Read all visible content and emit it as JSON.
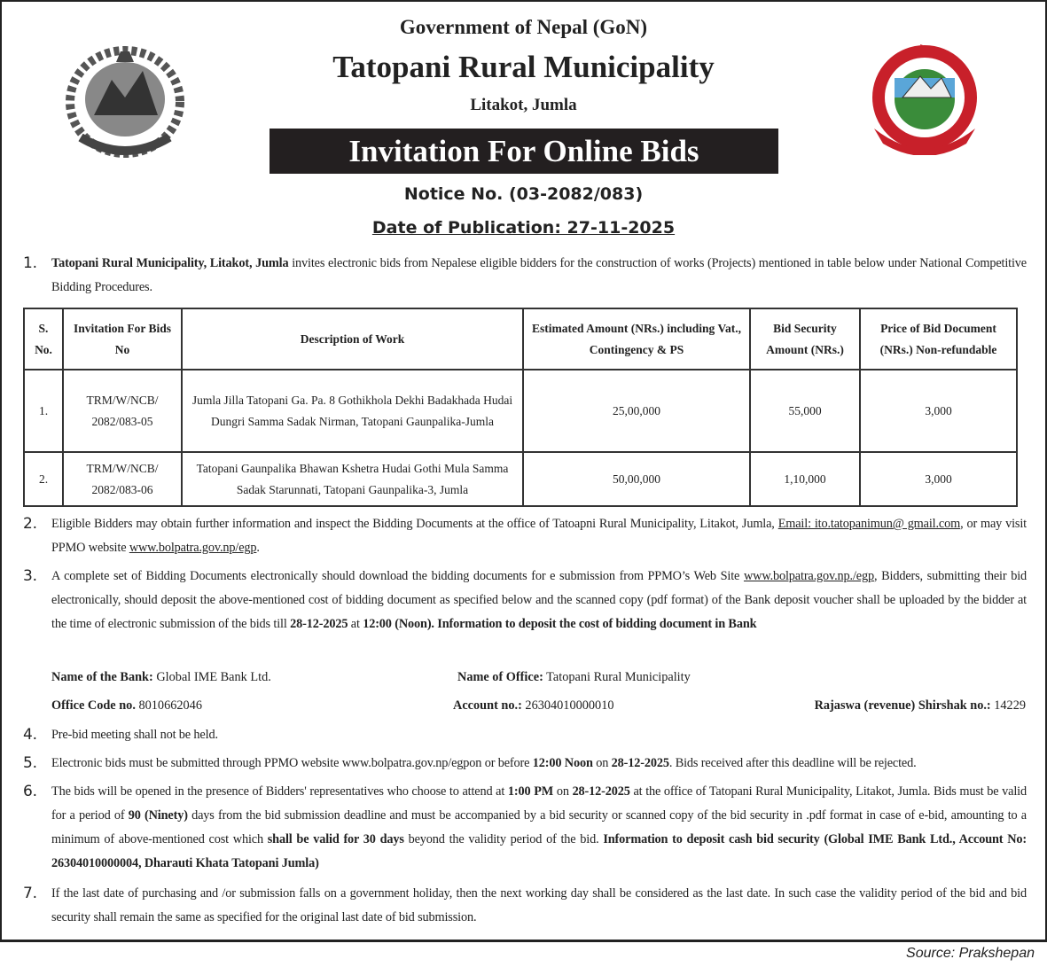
{
  "header": {
    "government": "Government of Nepal (GoN)",
    "municipality": "Tatopani Rural Municipality",
    "location": "Litakot, Jumla",
    "title": "Invitation For Online Bids",
    "notice_no": "Notice No. (03-2082/083)",
    "publication_date": "Date of Publication: 27-11-2025"
  },
  "logos": {
    "left": "nepal-government-emblem",
    "right": "tatopani-rural-municipality-logo"
  },
  "para1": {
    "num": "1.",
    "segments": [
      {
        "t": "Tatopani Rural Municipality, Litakot, Jumla",
        "b": true
      },
      {
        "t": " invites electronic bids from Nepalese eligible bidders for the construction of works (Projects) mentioned in table below under National Competitive Bidding Procedures."
      }
    ]
  },
  "table": {
    "headers": [
      "S. No.",
      "Invitation For Bids No",
      "Description of Work",
      "Estimated Amount (NRs.) including Vat., Contingency & PS",
      "Bid Security Amount (NRs.)",
      "Price of Bid Document (NRs.) Non-refundable"
    ],
    "rows": [
      [
        "1.",
        "TRM/W/NCB/ 2082/083-05",
        "Jumla Jilla Tatopani Ga. Pa. 8 Gothikhola Dekhi Badakhada Hudai Dungri Samma Sadak Nirman, Tatopani Gaunpalika-Jumla",
        "25,00,000",
        "55,000",
        "3,000"
      ],
      [
        "2.",
        "TRM/W/NCB/ 2082/083-06",
        "Tatopani Gaunpalika Bhawan Kshetra Hudai Gothi Mula Samma Sadak Starunnati, Tatopani Gaunpalika-3, Jumla",
        "50,00,000",
        "1,10,000",
        "3,000"
      ]
    ]
  },
  "para2": {
    "num": "2.",
    "segments": [
      {
        "t": "Eligible Bidders may obtain further information and inspect the Bidding Documents at the office of Tatoapni Rural Municipality, Litakot, Jumla, "
      },
      {
        "t": "Email: ito.tatopanimun@ gmail.com",
        "u": true
      },
      {
        "t": ", or may visit PPMO website "
      },
      {
        "t": "www.bolpatra.gov.np/egp",
        "u": true
      },
      {
        "t": "."
      }
    ]
  },
  "para3": {
    "num": "3.",
    "segments": [
      {
        "t": "A complete set of Bidding Documents electronically should download the bidding documents for e submission from PPMO’s Web Site "
      },
      {
        "t": "www.bolpatra.gov.np./egp",
        "u": true
      },
      {
        "t": ", Bidders, submitting their bid electronically, should deposit the above-mentioned cost of bidding document as specified below and the scanned copy (pdf format) of the Bank deposit voucher shall be uploaded by the bidder at the time of electronic submission of the bids till "
      },
      {
        "t": "28-12-2025",
        "b": true
      },
      {
        "t": " at "
      },
      {
        "t": "12:00 (Noon). Information to deposit the cost of bidding document in Bank",
        "b": true
      }
    ]
  },
  "bank": {
    "bank_label": "Name of the Bank:",
    "bank_value": " Global IME Bank Ltd.",
    "office_label": "Name of Office:",
    "office_value": " Tatopani Rural Municipality",
    "code_label": "Office Code no.",
    "code_value": " 8010662046",
    "account_label": "Account no.:",
    "account_value": " 26304010000010",
    "rajaswa_label": "Rajaswa (revenue) Shirshak no.:",
    "rajaswa_value": " 14229"
  },
  "para4": {
    "num": "4.",
    "segments": [
      {
        "t": "Pre-bid meeting shall not be held."
      }
    ]
  },
  "para5": {
    "num": "5.",
    "segments": [
      {
        "t": "Electronic bids must be submitted through PPMO website www.bolpatra.gov.np/egpon or before "
      },
      {
        "t": "12:00 Noon",
        "b": true
      },
      {
        "t": " on "
      },
      {
        "t": "28-12-2025",
        "b": true
      },
      {
        "t": ". Bids received after this deadline will be rejected."
      }
    ]
  },
  "para6": {
    "num": "6.",
    "segments": [
      {
        "t": "The bids will be opened in the presence of Bidders' representatives who choose to attend at "
      },
      {
        "t": "1:00 PM",
        "b": true
      },
      {
        "t": " on "
      },
      {
        "t": "28-12-2025",
        "b": true
      },
      {
        "t": " at the office of Tatopani Rural Municipality, Litakot, Jumla. Bids must be valid for a period of "
      },
      {
        "t": "90 (Ninety)",
        "b": true
      },
      {
        "t": " days from the bid submission deadline and must be accompanied by a bid security or scanned copy of the bid security in .pdf format in case of e-bid, amounting to a minimum of above-mentioned cost which "
      },
      {
        "t": "shall be valid for 30 days",
        "b": true
      },
      {
        "t": " beyond the validity period of the bid. "
      },
      {
        "t": "Information to deposit cash bid security (Global IME Bank Ltd., Account No: 26304010000004, Dharauti Khata Tatopani Jumla)",
        "b": true
      }
    ]
  },
  "para7": {
    "num": "7.",
    "segments": [
      {
        "t": "If the last date of purchasing and /or submission falls on a government holiday, then the next working day shall be considered as the last date. In such case the validity period of the bid and bid security shall remain the same as specified for the original last date of bid submission."
      }
    ]
  },
  "source": "Source: Prakshepan"
}
